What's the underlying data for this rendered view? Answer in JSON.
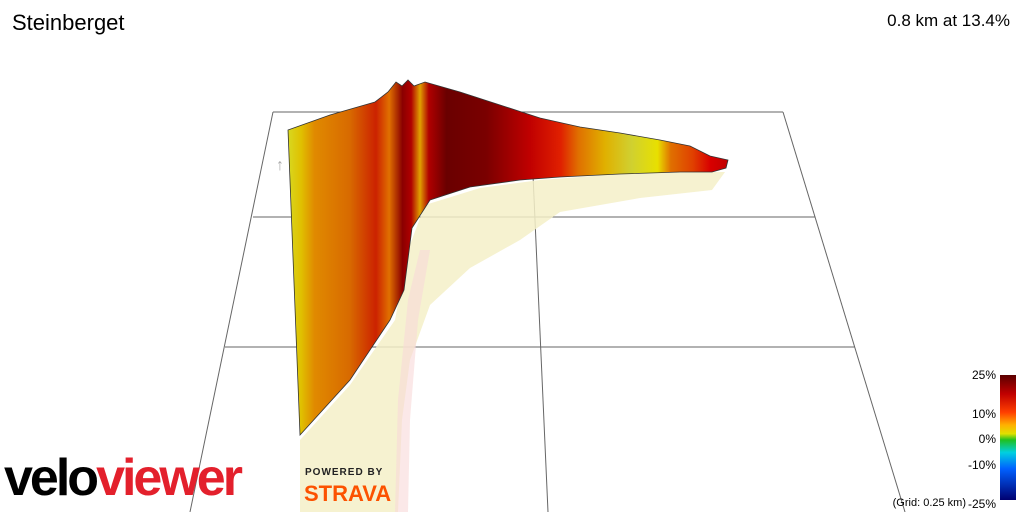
{
  "header": {
    "title": "Steinberget",
    "stats": "0.8 km at 13.4%"
  },
  "scale": {
    "labels": [
      "25%",
      "10%",
      "0%",
      "-10%",
      "-25%"
    ],
    "grid_note": "(Grid: 0.25 km)"
  },
  "branding": {
    "logo_part1": "velo",
    "logo_part2": "viewer",
    "powered_by": "POWERED BY",
    "strava": "STRAVA"
  }
}
